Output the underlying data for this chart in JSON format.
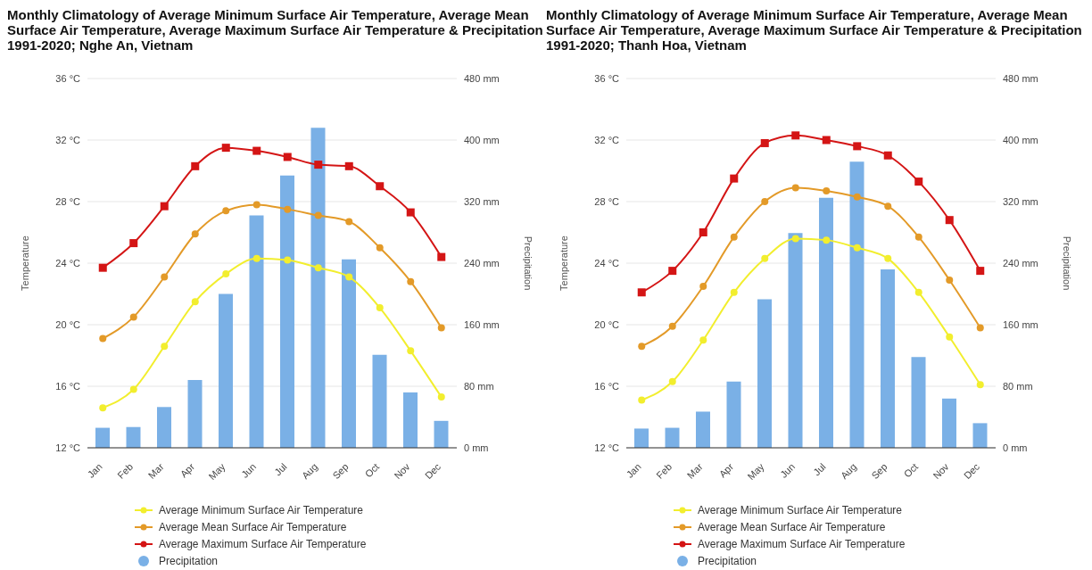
{
  "chart_data": [
    {
      "type": "line",
      "title": "Monthly Climatology of Average Minimum Surface Air Temperature, Average Mean Surface Air Temperature, Average Maximum Surface Air Temperature & Precipitation 1991-2020; Nghe An, Vietnam",
      "ylabel": "Temperature",
      "y2label": "Precipitation",
      "categories": [
        "Jan",
        "Feb",
        "Mar",
        "Apr",
        "May",
        "Jun",
        "Jul",
        "Aug",
        "Sep",
        "Oct",
        "Nov",
        "Dec"
      ],
      "ylim": [
        12,
        36
      ],
      "yticks": [
        {
          "value": 12,
          "label": "12 °C"
        },
        {
          "value": 16,
          "label": "16 °C"
        },
        {
          "value": 20,
          "label": "20 °C"
        },
        {
          "value": 24,
          "label": "24 °C"
        },
        {
          "value": 28,
          "label": "28 °C"
        },
        {
          "value": 32,
          "label": "32 °C"
        },
        {
          "value": 36,
          "label": "36 °C"
        }
      ],
      "y2lim": [
        0,
        480
      ],
      "y2ticks": [
        {
          "value": 0,
          "label": "0 mm"
        },
        {
          "value": 80,
          "label": "80 mm"
        },
        {
          "value": 160,
          "label": "160 mm"
        },
        {
          "value": 240,
          "label": "240 mm"
        },
        {
          "value": 320,
          "label": "320 mm"
        },
        {
          "value": 400,
          "label": "400 mm"
        },
        {
          "value": 480,
          "label": "480 mm"
        }
      ],
      "grid": "y",
      "legend": "bottom",
      "series": [
        {
          "name": "Average Minimum Surface Air Temperature",
          "marker": "circle",
          "color": "#f2ee2e",
          "values": [
            14.6,
            15.8,
            18.6,
            21.5,
            23.3,
            24.3,
            24.2,
            23.7,
            23.1,
            21.1,
            18.3,
            15.3
          ]
        },
        {
          "name": "Average Mean Surface Air Temperature",
          "marker": "circle",
          "color": "#e39a28",
          "values": [
            19.1,
            20.5,
            23.1,
            25.9,
            27.4,
            27.8,
            27.5,
            27.1,
            26.7,
            25.0,
            22.8,
            19.8
          ]
        },
        {
          "name": "Average Maximum Surface Air Temperature",
          "marker": "square",
          "color": "#d41515",
          "values": [
            23.7,
            25.3,
            27.7,
            30.3,
            31.5,
            31.3,
            30.9,
            30.4,
            30.3,
            29.0,
            27.3,
            24.4
          ]
        },
        {
          "name": "Precipitation",
          "type": "bar",
          "axis": "y2",
          "color": "#7ab0e6",
          "values": [
            26,
            27,
            53,
            88,
            200,
            302,
            354,
            416,
            245,
            121,
            72,
            35
          ]
        }
      ]
    },
    {
      "type": "line",
      "title": "Monthly Climatology of Average Minimum Surface Air Temperature, Average Mean Surface Air Temperature, Average Maximum Surface Air Temperature & Precipitation 1991-2020; Thanh Hoa, Vietnam",
      "ylabel": "Temperature",
      "y2label": "Precipitation",
      "categories": [
        "Jan",
        "Feb",
        "Mar",
        "Apr",
        "May",
        "Jun",
        "Jul",
        "Aug",
        "Sep",
        "Oct",
        "Nov",
        "Dec"
      ],
      "ylim": [
        12,
        36
      ],
      "yticks": [
        {
          "value": 12,
          "label": "12 °C"
        },
        {
          "value": 16,
          "label": "16 °C"
        },
        {
          "value": 20,
          "label": "20 °C"
        },
        {
          "value": 24,
          "label": "24 °C"
        },
        {
          "value": 28,
          "label": "28 °C"
        },
        {
          "value": 32,
          "label": "32 °C"
        },
        {
          "value": 36,
          "label": "36 °C"
        }
      ],
      "y2lim": [
        0,
        480
      ],
      "y2ticks": [
        {
          "value": 0,
          "label": "0 mm"
        },
        {
          "value": 80,
          "label": "80 mm"
        },
        {
          "value": 160,
          "label": "160 mm"
        },
        {
          "value": 240,
          "label": "240 mm"
        },
        {
          "value": 320,
          "label": "320 mm"
        },
        {
          "value": 400,
          "label": "400 mm"
        },
        {
          "value": 480,
          "label": "480 mm"
        }
      ],
      "grid": "y",
      "legend": "bottom",
      "series": [
        {
          "name": "Average Minimum Surface Air Temperature",
          "marker": "circle",
          "color": "#f2ee2e",
          "values": [
            15.1,
            16.3,
            19.0,
            22.1,
            24.3,
            25.6,
            25.5,
            25.0,
            24.3,
            22.1,
            19.2,
            16.1
          ]
        },
        {
          "name": "Average Mean Surface Air Temperature",
          "marker": "circle",
          "color": "#e39a28",
          "values": [
            18.6,
            19.9,
            22.5,
            25.7,
            28.0,
            28.9,
            28.7,
            28.3,
            27.7,
            25.7,
            22.9,
            19.8
          ]
        },
        {
          "name": "Average Maximum Surface Air Temperature",
          "marker": "square",
          "color": "#d41515",
          "values": [
            22.1,
            23.5,
            26.0,
            29.5,
            31.8,
            32.3,
            32.0,
            31.6,
            31.0,
            29.3,
            26.8,
            23.5
          ]
        },
        {
          "name": "Precipitation",
          "type": "bar",
          "axis": "y2",
          "color": "#7ab0e6",
          "values": [
            25,
            26,
            47,
            86,
            193,
            279,
            325,
            372,
            232,
            118,
            64,
            32
          ]
        }
      ]
    }
  ]
}
